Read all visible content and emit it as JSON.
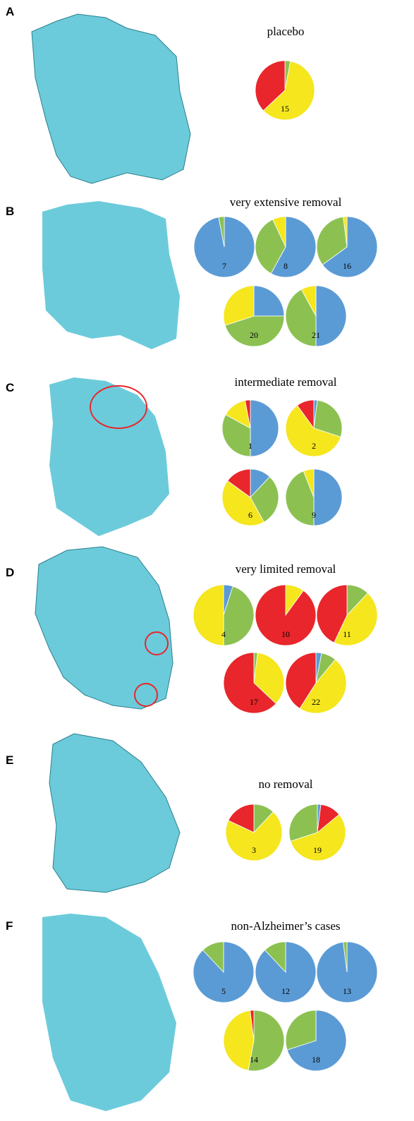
{
  "panels": [
    {
      "letter": "A",
      "title": "placebo",
      "pies": [
        {
          "label": "15",
          "values": [
            3,
            60,
            37
          ],
          "colors": [
            "#8cc152",
            "#f5e61e",
            "#e8262b"
          ]
        }
      ]
    },
    {
      "letter": "B",
      "title": "very extensive removal",
      "pies": [
        {
          "label": "7",
          "values": [
            97,
            3
          ],
          "colors": [
            "#5b9bd5",
            "#8cc152"
          ]
        },
        {
          "label": "8",
          "values": [
            58,
            35,
            7
          ],
          "colors": [
            "#5b9bd5",
            "#8cc152",
            "#f5e61e"
          ]
        },
        {
          "label": "16",
          "values": [
            65,
            33,
            2
          ],
          "colors": [
            "#5b9bd5",
            "#8cc152",
            "#f5e61e"
          ]
        },
        {
          "label": "20",
          "values": [
            25,
            45,
            30
          ],
          "colors": [
            "#5b9bd5",
            "#8cc152",
            "#f5e61e"
          ]
        },
        {
          "label": "21",
          "values": [
            50,
            42,
            8
          ],
          "colors": [
            "#5b9bd5",
            "#8cc152",
            "#f5e61e"
          ]
        }
      ]
    },
    {
      "letter": "C",
      "title": "intermediate removal",
      "pies": [
        {
          "label": "1",
          "values": [
            50,
            33,
            14,
            3
          ],
          "colors": [
            "#5b9bd5",
            "#8cc152",
            "#f5e61e",
            "#e8262b"
          ]
        },
        {
          "label": "2",
          "values": [
            2,
            28,
            60,
            10
          ],
          "colors": [
            "#5b9bd5",
            "#8cc152",
            "#f5e61e",
            "#e8262b"
          ]
        },
        {
          "label": "6",
          "values": [
            12,
            30,
            43,
            15
          ],
          "colors": [
            "#5b9bd5",
            "#8cc152",
            "#f5e61e",
            "#e8262b"
          ]
        },
        {
          "label": "9",
          "values": [
            50,
            44,
            6
          ],
          "colors": [
            "#5b9bd5",
            "#8cc152",
            "#f5e61e"
          ]
        }
      ]
    },
    {
      "letter": "D",
      "title": "very limited removal",
      "pies": [
        {
          "label": "4",
          "values": [
            5,
            45,
            50
          ],
          "colors": [
            "#5b9bd5",
            "#8cc152",
            "#f5e61e"
          ]
        },
        {
          "label": "10",
          "values": [
            10,
            90
          ],
          "colors": [
            "#f5e61e",
            "#e8262b"
          ]
        },
        {
          "label": "11",
          "values": [
            12,
            45,
            43
          ],
          "colors": [
            "#8cc152",
            "#f5e61e",
            "#e8262b"
          ]
        },
        {
          "label": "17",
          "values": [
            2,
            35,
            63
          ],
          "colors": [
            "#8cc152",
            "#f5e61e",
            "#e8262b"
          ]
        },
        {
          "label": "22",
          "values": [
            3,
            8,
            48,
            41
          ],
          "colors": [
            "#5b9bd5",
            "#8cc152",
            "#f5e61e",
            "#e8262b"
          ]
        }
      ]
    },
    {
      "letter": "E",
      "title": "no removal",
      "pies": [
        {
          "label": "3",
          "values": [
            12,
            70,
            18
          ],
          "colors": [
            "#8cc152",
            "#f5e61e",
            "#e8262b"
          ]
        },
        {
          "label": "19",
          "values": [
            2,
            12,
            56,
            30
          ],
          "colors": [
            "#5b9bd5",
            "#e8262b",
            "#f5e61e",
            "#8cc152"
          ]
        }
      ]
    },
    {
      "letter": "F",
      "title": "non-Alzheimer’s cases",
      "pies": [
        {
          "label": "5",
          "values": [
            88,
            12
          ],
          "colors": [
            "#5b9bd5",
            "#8cc152"
          ]
        },
        {
          "label": "12",
          "values": [
            88,
            12
          ],
          "colors": [
            "#5b9bd5",
            "#8cc152"
          ]
        },
        {
          "label": "13",
          "values": [
            98,
            2
          ],
          "colors": [
            "#5b9bd5",
            "#8cc152"
          ]
        },
        {
          "label": "14",
          "values": [
            53,
            45,
            2
          ],
          "colors": [
            "#8cc152",
            "#f5e61e",
            "#e8262b"
          ]
        },
        {
          "label": "18",
          "values": [
            70,
            30
          ],
          "colors": [
            "#5b9bd5",
            "#8cc152"
          ]
        }
      ]
    }
  ]
}
